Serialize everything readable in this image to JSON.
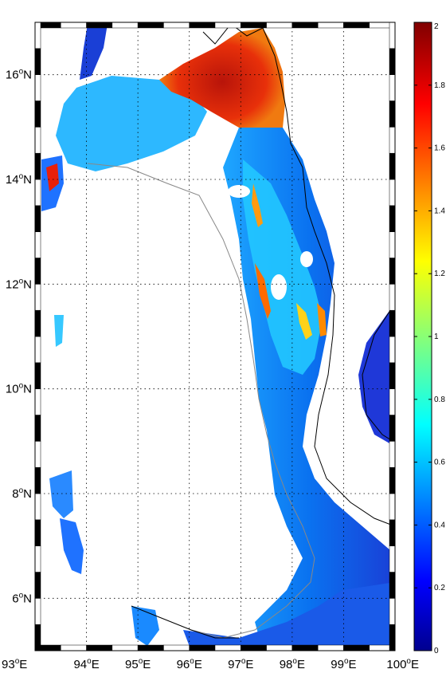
{
  "map": {
    "lon_ticks": [
      {
        "num": "93",
        "deg": "o",
        "hemi": "E"
      },
      {
        "num": "94",
        "deg": "o",
        "hemi": "E"
      },
      {
        "num": "95",
        "deg": "o",
        "hemi": "E"
      },
      {
        "num": "96",
        "deg": "o",
        "hemi": "E"
      },
      {
        "num": "97",
        "deg": "o",
        "hemi": "E"
      },
      {
        "num": "98",
        "deg": "o",
        "hemi": "E"
      },
      {
        "num": "99",
        "deg": "o",
        "hemi": "E"
      },
      {
        "num": "100",
        "deg": "o",
        "hemi": "E"
      }
    ],
    "lat_ticks": [
      {
        "num": "6",
        "deg": "o",
        "hemi": "N"
      },
      {
        "num": "8",
        "deg": "o",
        "hemi": "N"
      },
      {
        "num": "10",
        "deg": "o",
        "hemi": "N"
      },
      {
        "num": "12",
        "deg": "o",
        "hemi": "N"
      },
      {
        "num": "14",
        "deg": "o",
        "hemi": "N"
      },
      {
        "num": "16",
        "deg": "o",
        "hemi": "N"
      }
    ],
    "lon_range": [
      93,
      100
    ],
    "lat_range": [
      5,
      17
    ],
    "grid": true,
    "grid_style": "dotted"
  },
  "colorbar": {
    "labels": [
      "0",
      "0.2",
      "0.4",
      "0.6",
      "0.8",
      "1",
      "1.2",
      "1.4",
      "1.6",
      "1.8",
      "2"
    ],
    "range": [
      0,
      2
    ],
    "colormap": "jet",
    "position": "right"
  },
  "colors": {
    "ocean_low": "#1a3fd6",
    "ocean_mid": "#1aa0ff",
    "ocean_high": "#cc1a00",
    "land": "#ffffff",
    "coastline": "#000000",
    "shelf_contour": "#888888"
  }
}
